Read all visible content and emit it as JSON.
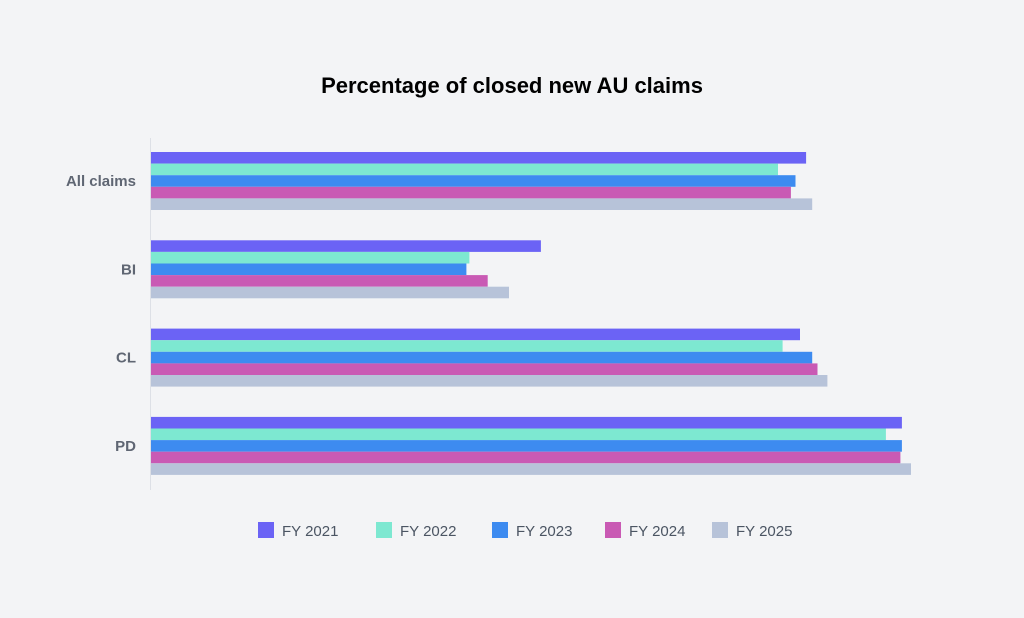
{
  "chart_data": {
    "type": "bar",
    "orientation": "horizontal",
    "title": "Percentage of closed new AU claims",
    "xlabel": "",
    "ylabel": "",
    "xlim": [
      0,
      100
    ],
    "grid": false,
    "legend_position": "bottom",
    "categories": [
      "All claims",
      "BI",
      "CL",
      "PD"
    ],
    "series": [
      {
        "name": "FY 2021",
        "color": "#6b63f5",
        "values": [
          86.2,
          51.3,
          85.4,
          98.8
        ]
      },
      {
        "name": "FY 2022",
        "color": "#7de8d1",
        "values": [
          82.5,
          41.9,
          83.1,
          96.7
        ]
      },
      {
        "name": "FY 2023",
        "color": "#3d8bf0",
        "values": [
          84.8,
          41.5,
          87.0,
          98.8
        ]
      },
      {
        "name": "FY 2024",
        "color": "#c95ab4",
        "values": [
          84.2,
          44.3,
          87.7,
          98.6
        ]
      },
      {
        "name": "FY 2025",
        "color": "#b7c3d9",
        "values": [
          87.0,
          47.1,
          89.0,
          100.0
        ]
      }
    ]
  }
}
